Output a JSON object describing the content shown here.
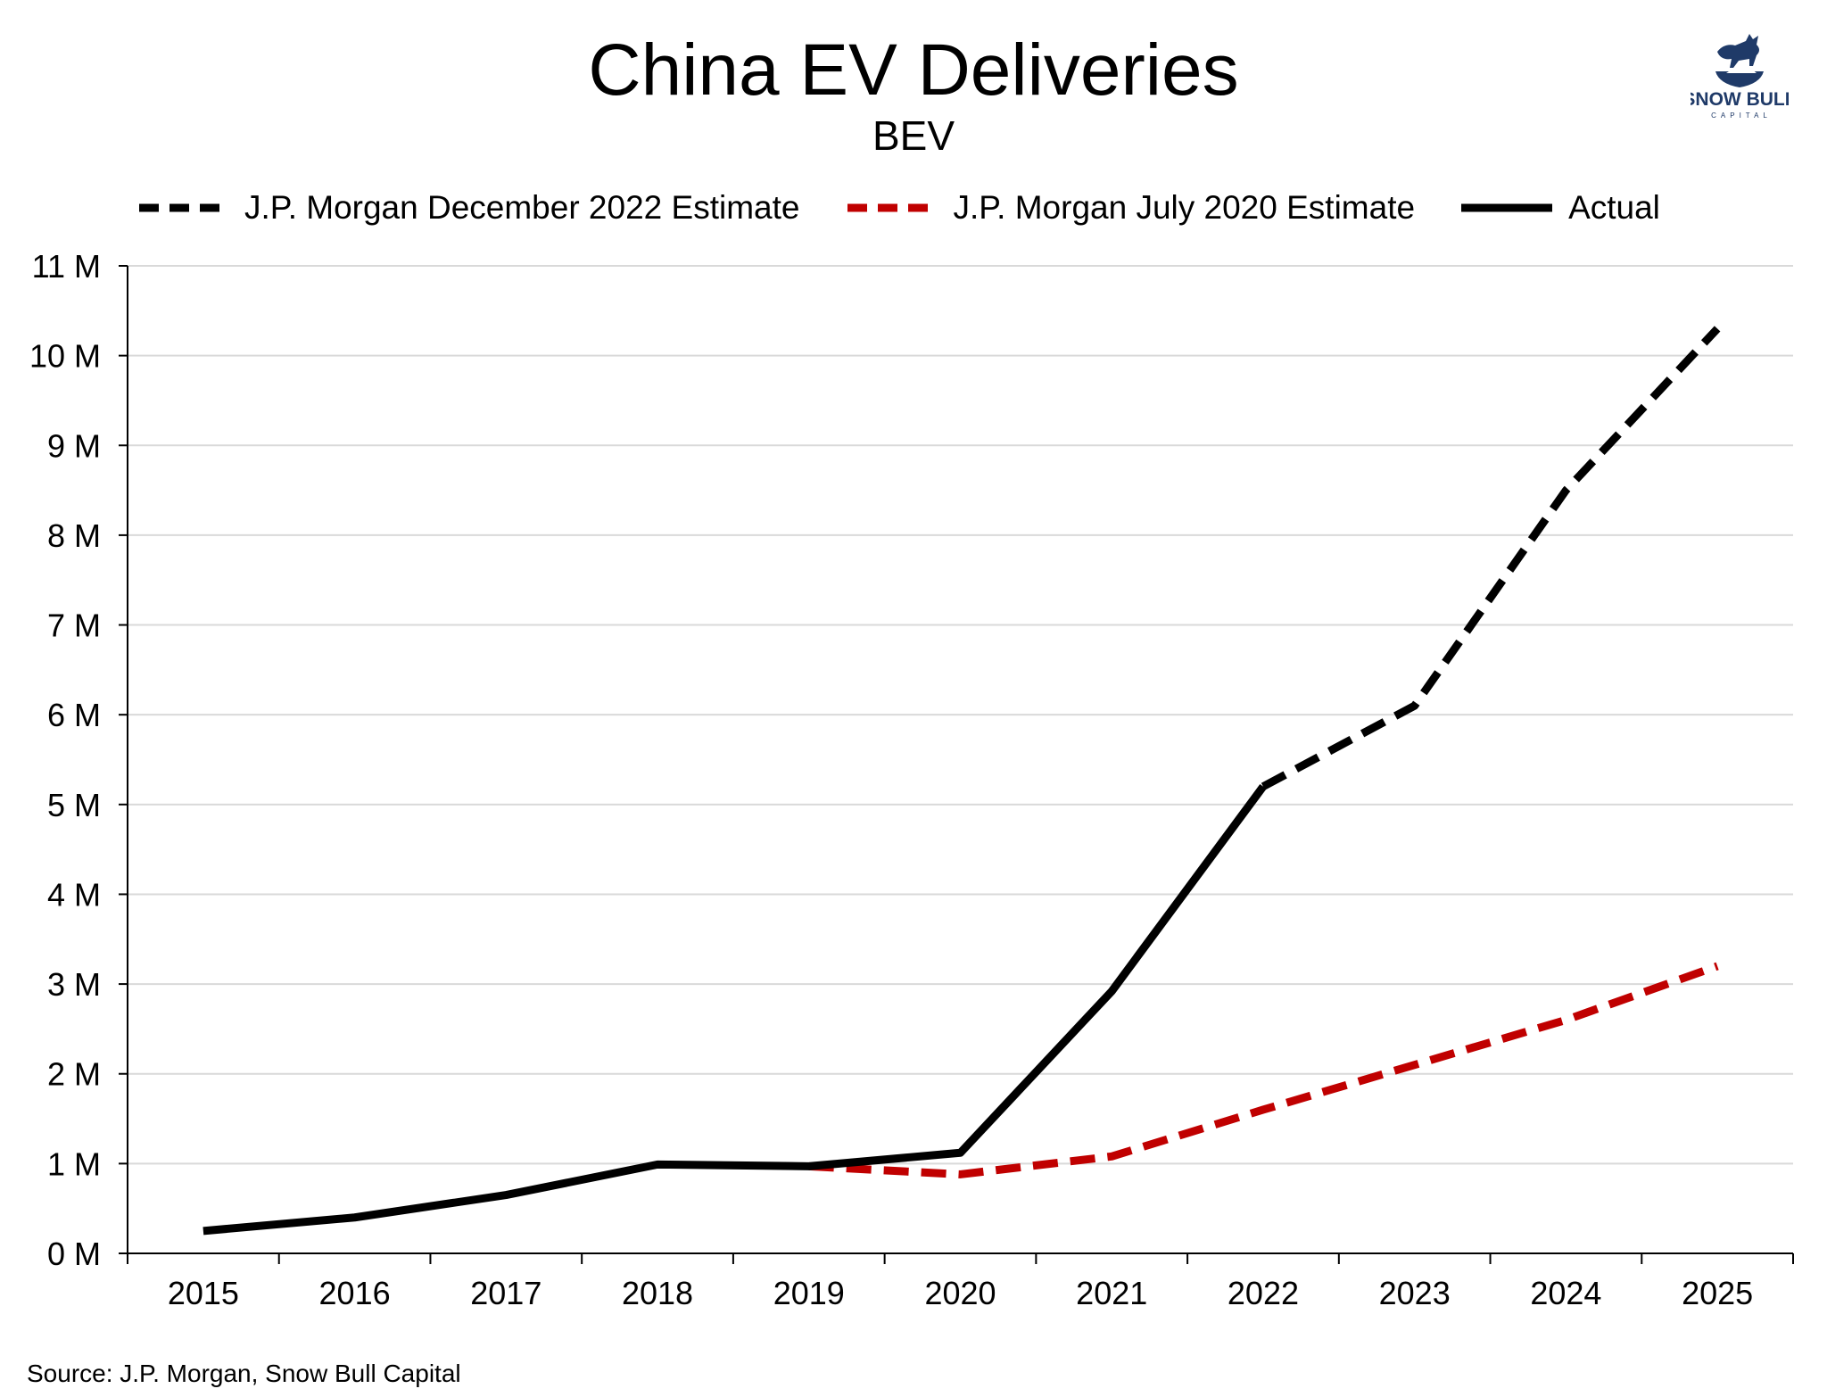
{
  "chart_data": {
    "type": "line",
    "title": "China EV Deliveries",
    "subtitle": "BEV",
    "categories": [
      "2015",
      "2016",
      "2017",
      "2018",
      "2019",
      "2020",
      "2021",
      "2022",
      "2023",
      "2024",
      "2025"
    ],
    "ylim": [
      0,
      11
    ],
    "yticks": [
      "0 M",
      "1 M",
      "2 M",
      "3 M",
      "4 M",
      "5 M",
      "6 M",
      "7 M",
      "8 M",
      "9 M",
      "10 M",
      "11 M"
    ],
    "grid": true,
    "legend_position": "top",
    "series": [
      {
        "name": "J.P. Morgan December 2022 Estimate",
        "color": "#000000",
        "style": "dashed",
        "values": [
          null,
          null,
          null,
          null,
          null,
          null,
          null,
          5.2,
          6.1,
          8.5,
          10.3
        ]
      },
      {
        "name": "J.P. Morgan July 2020 Estimate",
        "color": "#c00000",
        "style": "dashed",
        "values": [
          null,
          null,
          null,
          null,
          0.97,
          0.88,
          1.08,
          1.6,
          2.1,
          2.6,
          3.2
        ]
      },
      {
        "name": "Actual",
        "color": "#000000",
        "style": "solid",
        "values": [
          0.25,
          0.4,
          0.65,
          0.99,
          0.97,
          1.12,
          2.92,
          5.2,
          null,
          null,
          null
        ]
      }
    ],
    "source": "Source: J.P. Morgan, Snow Bull Capital"
  },
  "logo": {
    "name": "SNOW BULL",
    "sub": "CAPITAL",
    "color": "#1f3a68"
  }
}
